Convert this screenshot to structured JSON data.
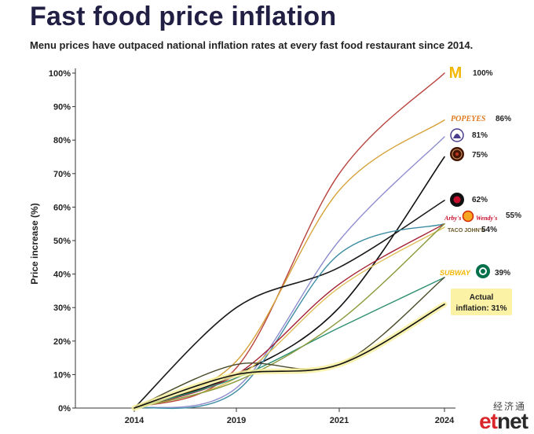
{
  "title": "Fast food price inflation",
  "subtitle": "Menu prices have outpaced national inflation rates at every fast food restaurant since 2014.",
  "watermark": {
    "cn": "经济通",
    "et": "et",
    "net": "net"
  },
  "chart_data": {
    "type": "line",
    "ylabel": "Price increase (%)",
    "ylim": [
      0,
      100
    ],
    "yticks": [
      "0%",
      "10%",
      "20%",
      "30%",
      "40%",
      "50%",
      "60%",
      "70%",
      "80%",
      "90%",
      "100%"
    ],
    "xticks": [
      "2014",
      "2019",
      "2021",
      "2024"
    ],
    "x": [
      2014,
      2019,
      2021,
      2024
    ],
    "inflation_annotation": "Actual inflation: 31%",
    "series": [
      {
        "logo": "McDonald's",
        "label": "100%",
        "color": "#b8433e",
        "values": [
          0,
          12,
          70,
          100
        ]
      },
      {
        "logo": "POPEYES",
        "label": "86%",
        "color": "#d6a23a",
        "values": [
          0,
          14,
          65,
          86
        ]
      },
      {
        "logo": "Taco Bell",
        "label": "81%",
        "color": "#8f8ecf",
        "values": [
          0,
          6,
          50,
          81
        ]
      },
      {
        "logo": "Chipotle",
        "label": "75%",
        "color": "#111111",
        "values": [
          0,
          10,
          30,
          75
        ]
      },
      {
        "logo": "Jack in the Box",
        "label": "62%",
        "color": "#1a1a1a",
        "values": [
          0,
          30,
          42,
          62
        ]
      },
      {
        "logo": "Arby's / Burger King / Wendy's",
        "label": "55%",
        "color": "#3e8da3",
        "values": [
          0,
          5,
          46,
          55
        ]
      },
      {
        "logo": "Taco John's",
        "label": "54%",
        "color": "#e0bf5a",
        "values": [
          0,
          9,
          36,
          54
        ]
      },
      {
        "logo": "Arby's / Burger King / Wendy's",
        "label": "",
        "color": "#a32035",
        "values": [
          0,
          10,
          37,
          55
        ]
      },
      {
        "logo": "SUBWAY / Starbucks",
        "label": "39%",
        "color": "#2f8f73",
        "values": [
          0,
          9,
          24,
          39
        ]
      },
      {
        "logo": "",
        "label": "",
        "color": "#8a9a3a",
        "values": [
          0,
          8,
          26,
          55
        ]
      },
      {
        "logo": "",
        "label": "",
        "color": "#4a4a2a",
        "values": [
          0,
          13,
          13,
          39
        ]
      },
      {
        "logo": "Actual inflation",
        "label": "",
        "color": "#111111",
        "values": [
          0,
          10,
          13,
          31
        ]
      }
    ]
  },
  "logos": {
    "mcdonalds": "M",
    "popeyes": "POPEYES",
    "arbys": "Arby's",
    "wendys": "Wendy's",
    "tacojohns": "TACO JOHN'S",
    "subway": "SUBWAY"
  }
}
